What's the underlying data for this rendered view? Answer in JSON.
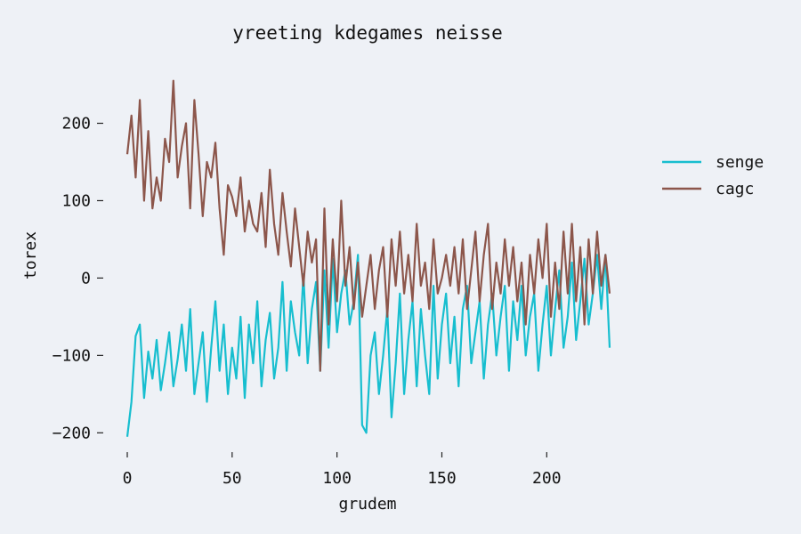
{
  "chart_data": {
    "type": "line",
    "title": "yreeting kdegames neisse",
    "xlabel": "grudem",
    "ylabel": "torex",
    "xlim": [
      0,
      230
    ],
    "ylim": [
      -210,
      265
    ],
    "xticks": [
      0,
      50,
      100,
      150,
      200
    ],
    "yticks": [
      -200,
      -100,
      0,
      100,
      200
    ],
    "ytick_labels": [
      "−200",
      "−100",
      "0",
      "100",
      "200"
    ],
    "grid": false,
    "legend": "right",
    "series": [
      {
        "name": "senge",
        "color": "#17becf",
        "x": [
          0,
          2,
          4,
          6,
          8,
          10,
          12,
          14,
          16,
          18,
          20,
          22,
          24,
          26,
          28,
          30,
          32,
          34,
          36,
          38,
          40,
          42,
          44,
          46,
          48,
          50,
          52,
          54,
          56,
          58,
          60,
          62,
          64,
          66,
          68,
          70,
          72,
          74,
          76,
          78,
          80,
          82,
          84,
          86,
          88,
          90,
          92,
          94,
          96,
          98,
          100,
          102,
          104,
          106,
          108,
          110,
          112,
          114,
          116,
          118,
          120,
          122,
          124,
          126,
          128,
          130,
          132,
          134,
          136,
          138,
          140,
          142,
          144,
          146,
          148,
          150,
          152,
          154,
          156,
          158,
          160,
          162,
          164,
          166,
          168,
          170,
          172,
          174,
          176,
          178,
          180,
          182,
          184,
          186,
          188,
          190,
          192,
          194,
          196,
          198,
          200,
          202,
          204,
          206,
          208,
          210,
          212,
          214,
          216,
          218,
          220,
          222,
          224,
          226,
          228,
          230
        ],
        "values": [
          -205,
          -160,
          -75,
          -60,
          -155,
          -95,
          -130,
          -80,
          -145,
          -110,
          -70,
          -140,
          -105,
          -60,
          -120,
          -40,
          -150,
          -110,
          -70,
          -160,
          -90,
          -30,
          -120,
          -60,
          -150,
          -90,
          -130,
          -50,
          -155,
          -60,
          -110,
          -30,
          -140,
          -80,
          -45,
          -130,
          -90,
          -5,
          -120,
          -30,
          -70,
          -100,
          5,
          -110,
          -40,
          -5,
          -120,
          10,
          -90,
          25,
          -70,
          -20,
          10,
          -60,
          -30,
          30,
          -190,
          -200,
          -100,
          -70,
          -150,
          -100,
          -40,
          -180,
          -110,
          -20,
          -150,
          -80,
          -30,
          -140,
          -40,
          -100,
          -150,
          -10,
          -130,
          -60,
          -20,
          -110,
          -50,
          -140,
          -40,
          -10,
          -110,
          -70,
          -30,
          -130,
          -60,
          -20,
          -100,
          -50,
          -10,
          -120,
          -30,
          -80,
          -10,
          -100,
          -50,
          -20,
          -120,
          -60,
          -10,
          -100,
          -40,
          10,
          -90,
          -50,
          20,
          -80,
          -30,
          25,
          -60,
          -20,
          30,
          -40,
          30,
          -90
        ]
      },
      {
        "name": "cagc",
        "color": "#8c564b",
        "x": [
          0,
          2,
          4,
          6,
          8,
          10,
          12,
          14,
          16,
          18,
          20,
          22,
          24,
          26,
          28,
          30,
          32,
          34,
          36,
          38,
          40,
          42,
          44,
          46,
          48,
          50,
          52,
          54,
          56,
          58,
          60,
          62,
          64,
          66,
          68,
          70,
          72,
          74,
          76,
          78,
          80,
          82,
          84,
          86,
          88,
          90,
          92,
          94,
          96,
          98,
          100,
          102,
          104,
          106,
          108,
          110,
          112,
          114,
          116,
          118,
          120,
          122,
          124,
          126,
          128,
          130,
          132,
          134,
          136,
          138,
          140,
          142,
          144,
          146,
          148,
          150,
          152,
          154,
          156,
          158,
          160,
          162,
          164,
          166,
          168,
          170,
          172,
          174,
          176,
          178,
          180,
          182,
          184,
          186,
          188,
          190,
          192,
          194,
          196,
          198,
          200,
          202,
          204,
          206,
          208,
          210,
          212,
          214,
          216,
          218,
          220,
          222,
          224,
          226,
          228,
          230
        ],
        "values": [
          160,
          210,
          130,
          230,
          100,
          190,
          90,
          130,
          100,
          180,
          150,
          255,
          130,
          170,
          200,
          90,
          230,
          160,
          80,
          150,
          130,
          175,
          90,
          30,
          120,
          105,
          80,
          130,
          60,
          100,
          70,
          60,
          110,
          40,
          140,
          70,
          30,
          110,
          60,
          15,
          90,
          40,
          -10,
          60,
          20,
          50,
          -120,
          90,
          -60,
          50,
          -30,
          100,
          -10,
          40,
          -40,
          20,
          -50,
          -10,
          30,
          -40,
          10,
          40,
          -50,
          50,
          -10,
          60,
          -20,
          30,
          -30,
          70,
          -10,
          20,
          -40,
          50,
          -20,
          0,
          30,
          -10,
          40,
          -20,
          50,
          -40,
          10,
          60,
          -30,
          30,
          70,
          -40,
          20,
          -20,
          50,
          -10,
          40,
          -30,
          20,
          -60,
          30,
          -20,
          50,
          0,
          70,
          -50,
          20,
          -40,
          60,
          -20,
          70,
          -30,
          40,
          -60,
          50,
          -20,
          60,
          -10,
          30,
          -20
        ]
      }
    ]
  }
}
